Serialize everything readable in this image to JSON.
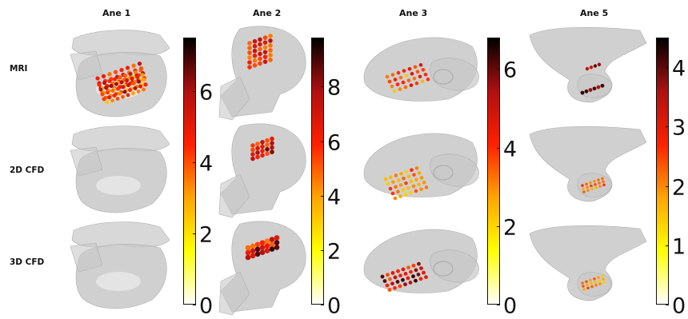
{
  "columns": [
    "Ane 1",
    "Ane 2",
    "Ane 3",
    "Ane 5"
  ],
  "rows": [
    "MRI",
    "2D CFD",
    "3D CFD"
  ],
  "colormap": [
    "#ffffff",
    "#ffff00",
    "#ffa500",
    "#ff2000",
    "#b01010",
    "#000000"
  ],
  "colorbars": [
    {
      "ticks": [
        "0",
        "2",
        "4",
        "6"
      ],
      "values": [
        0,
        2,
        4,
        6
      ],
      "vmax": 7.5
    },
    {
      "ticks": [
        "0",
        "2",
        "4",
        "6",
        "8"
      ],
      "values": [
        0,
        2,
        4,
        6,
        8
      ],
      "vmax": 9.8
    },
    {
      "ticks": [
        "0",
        "2",
        "4",
        "6"
      ],
      "values": [
        0,
        2,
        4,
        6
      ],
      "vmax": 6.8
    },
    {
      "ticks": [
        "0",
        "1",
        "2",
        "3",
        "4"
      ],
      "values": [
        0,
        1,
        2,
        3,
        4
      ],
      "vmax": 4.5
    }
  ]
}
